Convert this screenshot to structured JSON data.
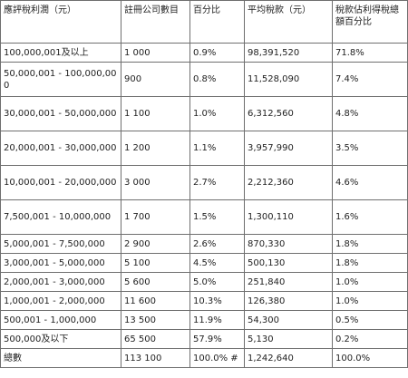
{
  "headers": [
    "應評稅利潤（元）",
    "註冊公司數目",
    "百分比",
    "平均稅款（元）",
    "稅款佔利得稅總額百分比"
  ],
  "rows": [
    [
      "100,000,001及以上",
      "1 000",
      "0.9%",
      "98,391,520",
      "71.8%"
    ],
    [
      "50,000,001 - 100,000,000",
      "900",
      "0.8%",
      "11,528,090",
      "7.4%"
    ],
    [
      "30,000,001 - 50,000,000",
      "1 100",
      "1.0%",
      "6,312,560",
      "4.8%"
    ],
    [
      "20,000,001 - 30,000,000",
      "1 200",
      "1.1%",
      "3,957,990",
      "3.5%"
    ],
    [
      "10,000,001 - 20,000,000",
      "3 000",
      "2.7%",
      "2,212,360",
      "4.6%"
    ],
    [
      "7,500,001 - 10,000,000",
      "1 700",
      "1.5%",
      "1,300,110",
      "1.6%"
    ],
    [
      "5,000,001 - 7,500,000",
      "2 900",
      "2.6%",
      "870,330",
      "1.8%"
    ],
    [
      "3,000,001 - 5,000,000",
      "5 100",
      "4.5%",
      "500,130",
      "1.8%"
    ],
    [
      "2,000,001 - 3,000,000",
      "5 600",
      "5.0%",
      "251,840",
      "1.0%"
    ],
    [
      "1,000,001 - 2,000,000",
      "11 600",
      "10.3%",
      "126,380",
      "1.0%"
    ],
    [
      "500,001 - 1,000,000",
      "13 500",
      "11.9%",
      "54,300",
      "0.5%"
    ],
    [
      "500,000及以下",
      "65 500",
      "57.9%",
      "5,130",
      "0.2%"
    ],
    [
      "總數",
      "113 100",
      "100.0% #",
      "1,242,640",
      "100.0%"
    ]
  ]
}
